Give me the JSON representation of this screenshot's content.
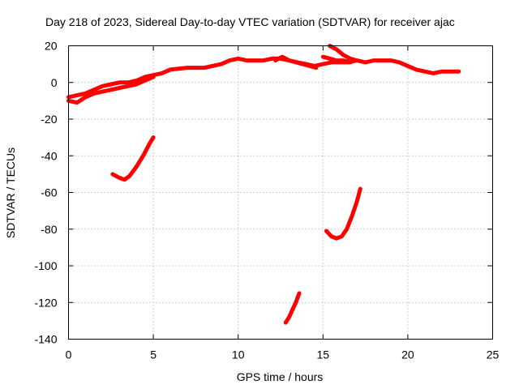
{
  "chart_data": {
    "type": "scatter",
    "title": "Day 218 of 2023, Sidereal Day-to-day VTEC variation (SDTVAR) for receiver ajac",
    "xlabel": "GPS time / hours",
    "ylabel": "SDTVAR / TECUs",
    "xlim": [
      0,
      25
    ],
    "ylim": [
      -140,
      20
    ],
    "xticks": [
      0,
      5,
      10,
      15,
      20,
      25
    ],
    "yticks": [
      -140,
      -120,
      -100,
      -80,
      -60,
      -40,
      -20,
      0,
      20
    ],
    "grid": true,
    "color": "#ff0000",
    "series": [
      {
        "name": "main-track",
        "points": [
          [
            0,
            -8
          ],
          [
            0.5,
            -7
          ],
          [
            1,
            -6
          ],
          [
            1.5,
            -4
          ],
          [
            2,
            -2
          ],
          [
            2.5,
            -1
          ],
          [
            3,
            0
          ],
          [
            3.5,
            0
          ],
          [
            4,
            1
          ],
          [
            4.5,
            3
          ],
          [
            5,
            4
          ],
          [
            5.5,
            5
          ],
          [
            6,
            7
          ],
          [
            7,
            8
          ],
          [
            8,
            8
          ],
          [
            9,
            10
          ],
          [
            9.5,
            12
          ],
          [
            10,
            13
          ],
          [
            10.5,
            12
          ],
          [
            11,
            12
          ],
          [
            11.5,
            12
          ],
          [
            12,
            13
          ],
          [
            12.5,
            13
          ],
          [
            13,
            12
          ],
          [
            13.5,
            11
          ],
          [
            14,
            10
          ],
          [
            14.5,
            9
          ],
          [
            15,
            10
          ],
          [
            15.5,
            11
          ],
          [
            16,
            11
          ],
          [
            16.5,
            11
          ],
          [
            17,
            12
          ],
          [
            17.5,
            11
          ],
          [
            18,
            12
          ],
          [
            18.5,
            12
          ],
          [
            19,
            12
          ],
          [
            19.5,
            11
          ],
          [
            20,
            9
          ],
          [
            20.5,
            7
          ],
          [
            21,
            6
          ],
          [
            21.5,
            5
          ],
          [
            22,
            6
          ],
          [
            22.5,
            6
          ],
          [
            23,
            6
          ]
        ]
      },
      {
        "name": "lower-band",
        "points": [
          [
            0,
            -10
          ],
          [
            0.5,
            -11
          ],
          [
            1,
            -8
          ],
          [
            1.5,
            -6
          ],
          [
            2,
            -5
          ],
          [
            2.5,
            -4
          ],
          [
            3,
            -3
          ],
          [
            3.5,
            -2
          ],
          [
            4,
            -1
          ],
          [
            4.5,
            1
          ],
          [
            5,
            3
          ]
        ]
      },
      {
        "name": "upper-segment-1",
        "points": [
          [
            12.2,
            12
          ],
          [
            12.6,
            14
          ],
          [
            13.0,
            12
          ],
          [
            13.4,
            11
          ],
          [
            13.8,
            10
          ],
          [
            14.2,
            9
          ],
          [
            14.6,
            8
          ]
        ]
      },
      {
        "name": "upper-segment-2",
        "points": [
          [
            15.0,
            14
          ],
          [
            15.4,
            13
          ],
          [
            15.8,
            12
          ],
          [
            16.2,
            12
          ],
          [
            16.6,
            11
          ]
        ]
      },
      {
        "name": "upper-segment-3",
        "points": [
          [
            15.4,
            20
          ],
          [
            15.8,
            18
          ],
          [
            16.2,
            15
          ],
          [
            16.6,
            13
          ],
          [
            17.0,
            12
          ]
        ]
      },
      {
        "name": "arc-5h",
        "points": [
          [
            2.6,
            -50
          ],
          [
            3.0,
            -52
          ],
          [
            3.3,
            -53
          ],
          [
            3.6,
            -51
          ],
          [
            4.0,
            -46
          ],
          [
            4.4,
            -40
          ],
          [
            4.8,
            -33
          ],
          [
            5.0,
            -30
          ]
        ]
      },
      {
        "name": "arc-13h",
        "points": [
          [
            12.8,
            -131
          ],
          [
            13.0,
            -128
          ],
          [
            13.2,
            -124
          ],
          [
            13.4,
            -120
          ],
          [
            13.6,
            -115
          ]
        ]
      },
      {
        "name": "arc-16h",
        "points": [
          [
            15.2,
            -81
          ],
          [
            15.5,
            -84
          ],
          [
            15.8,
            -85
          ],
          [
            16.1,
            -84
          ],
          [
            16.4,
            -80
          ],
          [
            16.7,
            -73
          ],
          [
            17.0,
            -65
          ],
          [
            17.2,
            -58
          ]
        ]
      }
    ]
  }
}
